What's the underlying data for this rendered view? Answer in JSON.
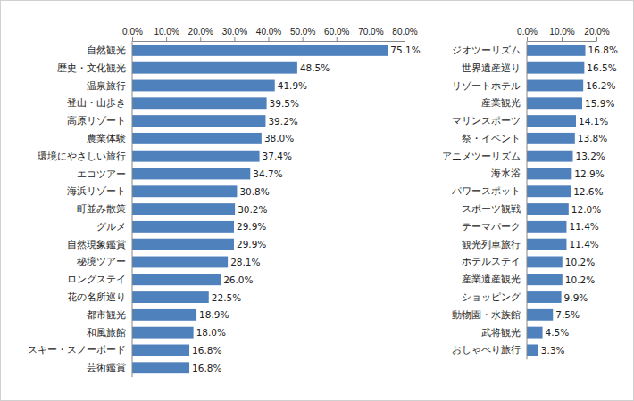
{
  "chart_data": [
    {
      "type": "bar",
      "orientation": "horizontal",
      "color": "#4f81bd",
      "grid": false,
      "data_labels": true,
      "categories": [
        "自然観光",
        "歴史・文化観光",
        "温泉旅行",
        "登山・山歩き",
        "高原リゾート",
        "農業体験",
        "環境にやさしい旅行",
        "エコツアー",
        "海浜リゾート",
        "町並み散策",
        "グルメ",
        "自然現象鑑賞",
        "秘境ツアー",
        "ロングステイ",
        "花の名所巡り",
        "都市観光",
        "和風旅館",
        "スキー・スノーボード",
        "芸術鑑賞"
      ],
      "values": [
        75.1,
        48.5,
        41.9,
        39.5,
        39.2,
        38.0,
        37.4,
        34.7,
        30.8,
        30.2,
        29.9,
        29.9,
        28.1,
        26.0,
        22.5,
        18.9,
        18.0,
        16.8,
        16.8
      ],
      "value_labels": [
        "75.1%",
        "48.5%",
        "41.9%",
        "39.5%",
        "39.2%",
        "38.0%",
        "37.4%",
        "34.7%",
        "30.8%",
        "30.2%",
        "29.9%",
        "29.9%",
        "28.1%",
        "26.0%",
        "22.5%",
        "18.9%",
        "18.0%",
        "16.8%",
        "16.8%"
      ],
      "xlim": [
        0,
        80
      ],
      "xticks": [
        {
          "value": 0,
          "label": "0.0%"
        },
        {
          "value": 10,
          "label": "10.0%"
        },
        {
          "value": 20,
          "label": "20.0%"
        },
        {
          "value": 30,
          "label": "30.0%"
        },
        {
          "value": 40,
          "label": "40.0%"
        },
        {
          "value": 50,
          "label": "50.0%"
        },
        {
          "value": 60,
          "label": "60.0%"
        },
        {
          "value": 70,
          "label": "70.0%"
        },
        {
          "value": 80,
          "label": "80.0%"
        }
      ]
    },
    {
      "type": "bar",
      "orientation": "horizontal",
      "color": "#4f81bd",
      "grid": false,
      "data_labels": true,
      "categories": [
        "ジオツーリズム",
        "世界遺産巡り",
        "リゾートホテル",
        "産業観光",
        "マリンスポーツ",
        "祭・イベント",
        "アニメツーリズム",
        "海水浴",
        "パワースポット",
        "スポーツ観戦",
        "テーマパーク",
        "観光列車旅行",
        "ホテルステイ",
        "産業遺産観光",
        "ショッピング",
        "動物園・水族館",
        "武将観光",
        "おしゃべり旅行"
      ],
      "values": [
        16.8,
        16.5,
        16.2,
        15.9,
        14.1,
        13.8,
        13.2,
        12.9,
        12.6,
        12.0,
        11.4,
        11.4,
        10.2,
        10.2,
        9.9,
        7.5,
        4.5,
        3.3
      ],
      "value_labels": [
        "16.8%",
        "16.5%",
        "16.2%",
        "15.9%",
        "14.1%",
        "13.8%",
        "13.2%",
        "12.9%",
        "12.6%",
        "12.0%",
        "11.4%",
        "11.4%",
        "10.2%",
        "10.2%",
        "9.9%",
        "7.5%",
        "4.5%",
        "3.3%"
      ],
      "xlim": [
        0,
        20
      ],
      "xticks": [
        {
          "value": 0,
          "label": "0.0%"
        },
        {
          "value": 10,
          "label": "10.0%"
        },
        {
          "value": 20,
          "label": "20.0%"
        }
      ]
    }
  ]
}
